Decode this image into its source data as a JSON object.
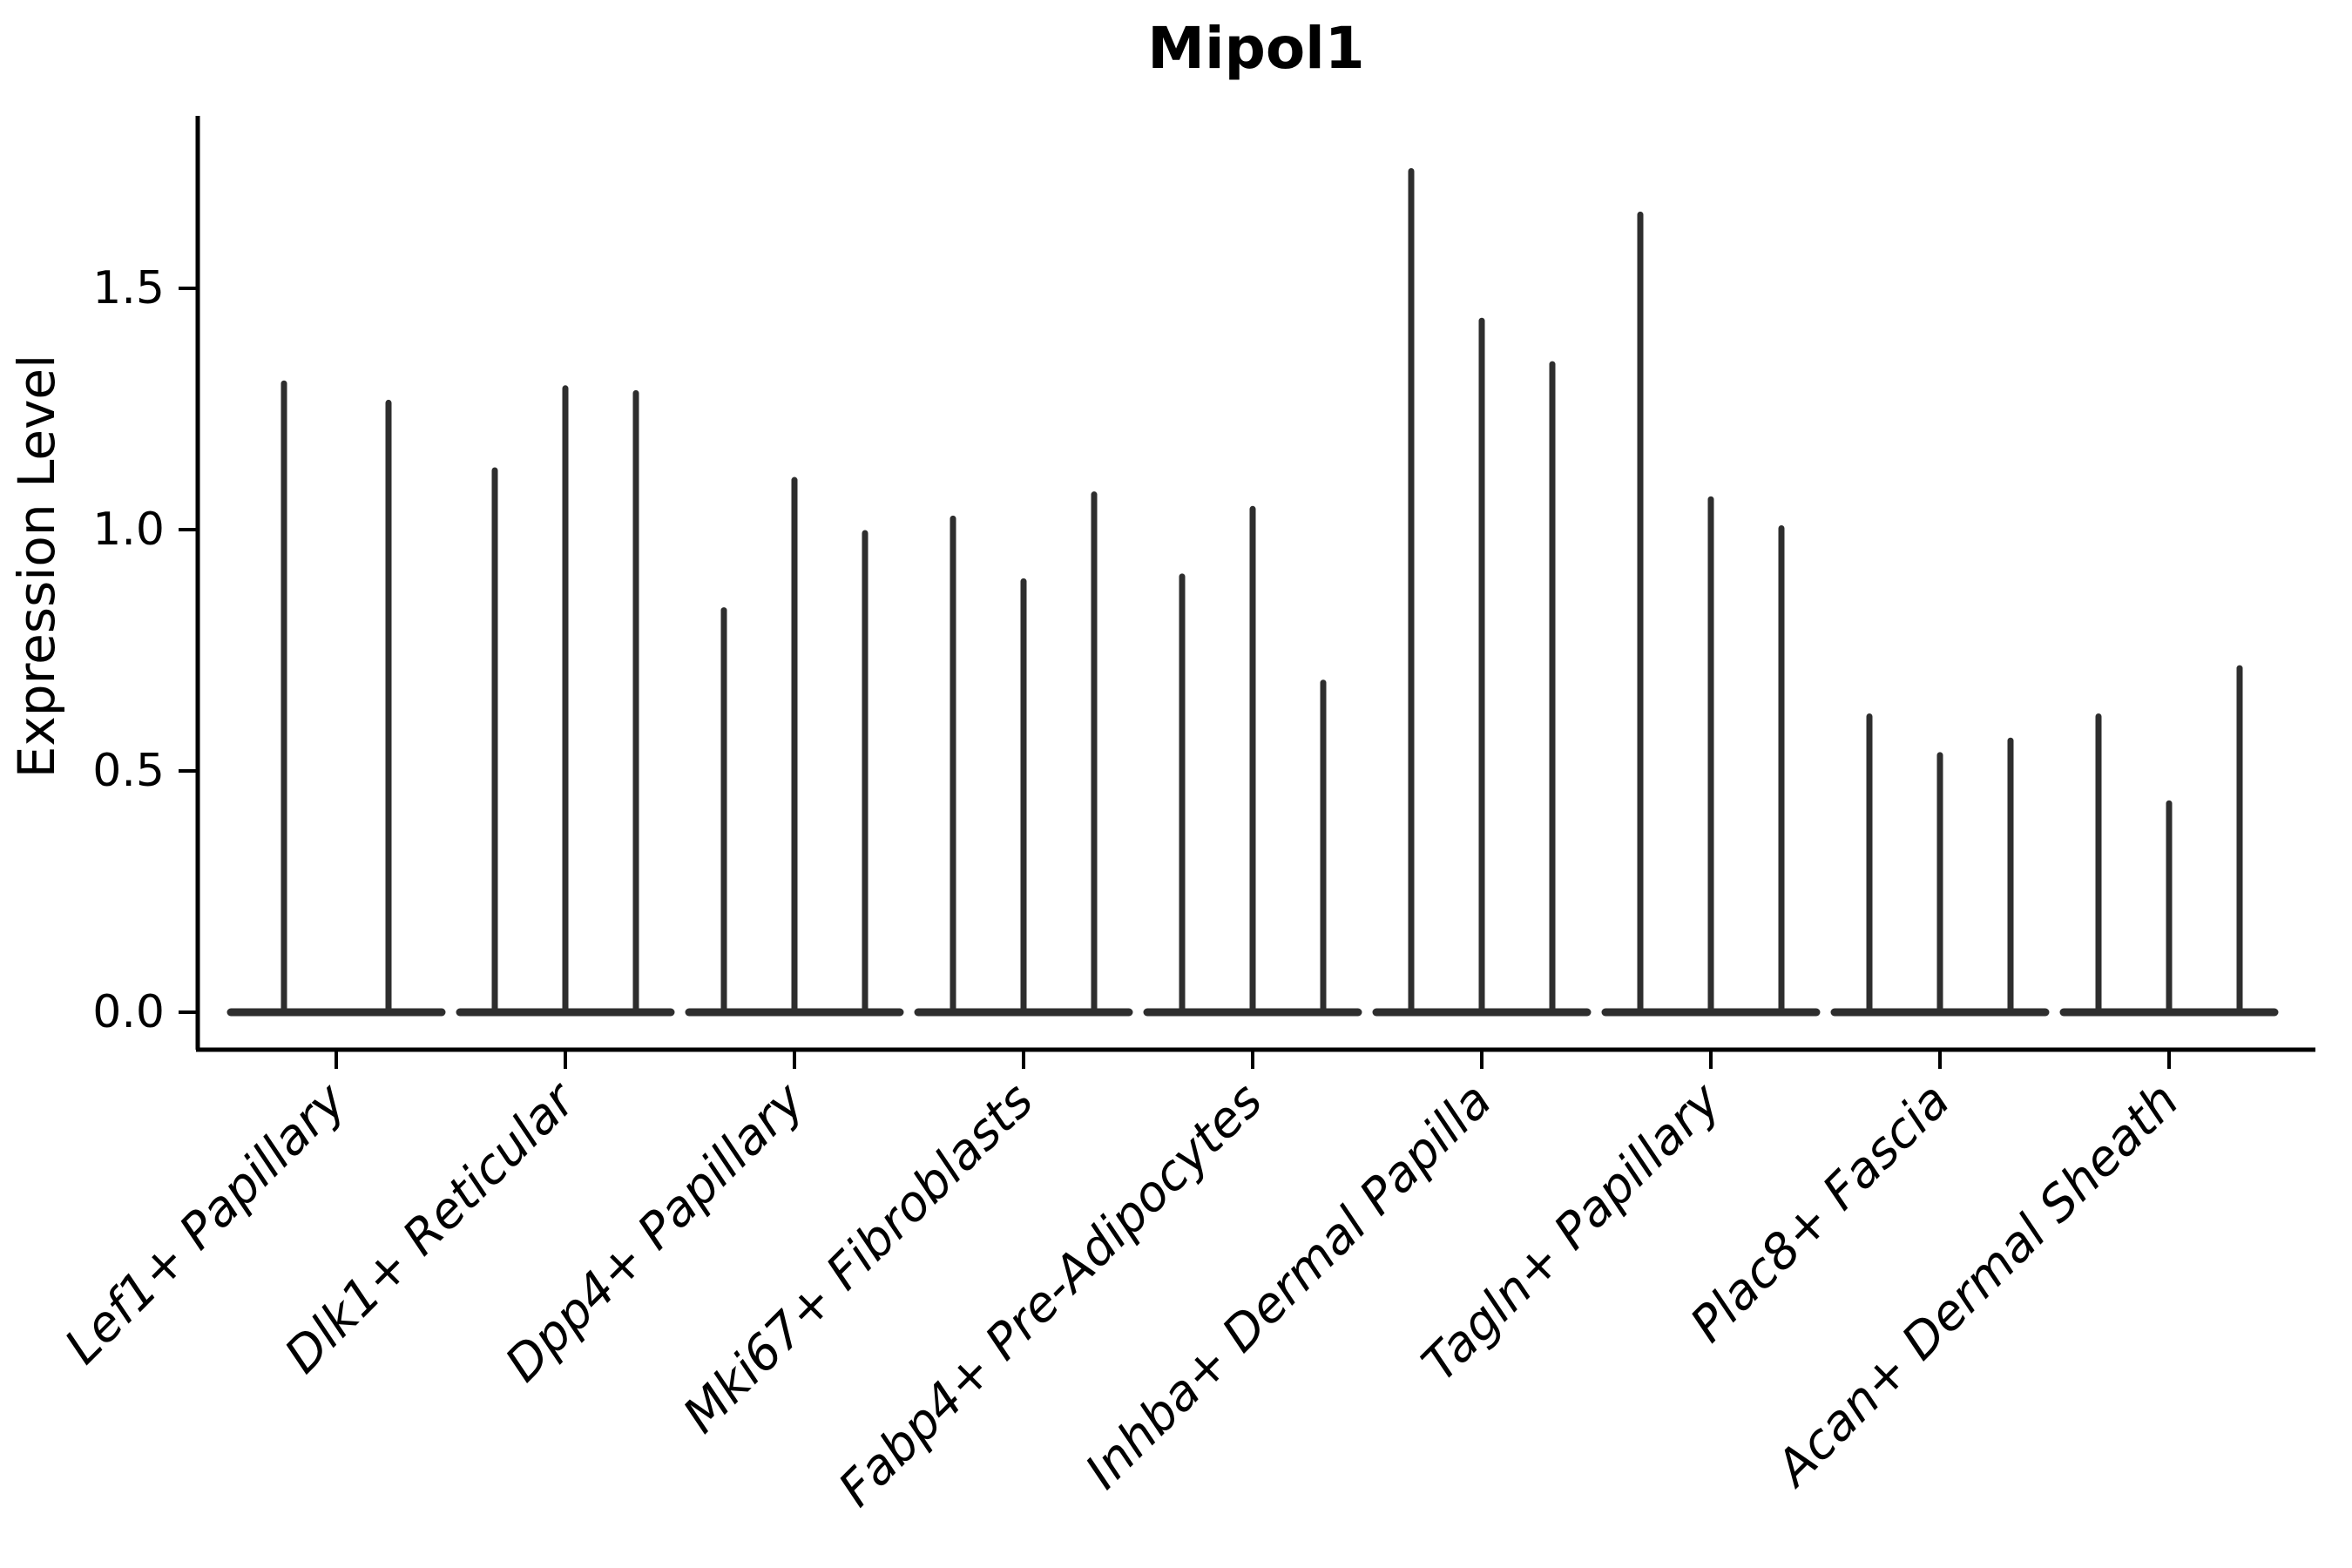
{
  "title": "Mipol1",
  "colors": {
    "background": "#ffffff",
    "axis": "#000000",
    "violin": "#2e2e2e"
  },
  "chart_data": {
    "type": "violin",
    "title": "Mipol1",
    "xlabel": "",
    "ylabel": "Expression Level",
    "ylim": [
      -0.05,
      1.86
    ],
    "yticks": [
      "0.0",
      "0.5",
      "1.0",
      "1.5"
    ],
    "ytick_values": [
      0.0,
      0.5,
      1.0,
      1.5
    ],
    "grid": false,
    "legend": "none",
    "categories": [
      "Lef1+ Papillary",
      "Dlk1+ Reticular",
      "Dpp4+ Papillary",
      "Mki67+ Fibroblasts",
      "Fabp4+ Pre-Adipocytes",
      "Inhba+ Dermal Papilla",
      "Tagln+ Papillary",
      "Plac8+ Fascia",
      "Acan+ Dermal Sheath"
    ],
    "groups": [
      {
        "category": "Lef1+ Papillary",
        "violin_max_expression": [
          1.31,
          1.27
        ]
      },
      {
        "category": "Dlk1+ Reticular",
        "violin_max_expression": [
          1.13,
          1.3,
          1.29
        ]
      },
      {
        "category": "Dpp4+ Papillary",
        "violin_max_expression": [
          0.84,
          1.11,
          1.0
        ]
      },
      {
        "category": "Mki67+ Fibroblasts",
        "violin_max_expression": [
          1.03,
          0.9,
          1.08
        ]
      },
      {
        "category": "Fabp4+ Pre-Adipocytes",
        "violin_max_expression": [
          0.91,
          1.05,
          0.69
        ]
      },
      {
        "category": "Inhba+ Dermal Papilla",
        "violin_max_expression": [
          1.75,
          1.44,
          1.35
        ]
      },
      {
        "category": "Tagln+ Papillary",
        "violin_max_expression": [
          1.66,
          1.07,
          1.01
        ]
      },
      {
        "category": "Plac8+ Fascia",
        "violin_max_expression": [
          0.62,
          0.54,
          0.57
        ]
      },
      {
        "category": "Acan+ Dermal Sheath",
        "violin_max_expression": [
          0.62,
          0.44,
          0.72
        ]
      }
    ],
    "annotation": "violins are near-zero width (expression concentrated at 0), drawn as thin spikes on a flat base at y=0"
  }
}
